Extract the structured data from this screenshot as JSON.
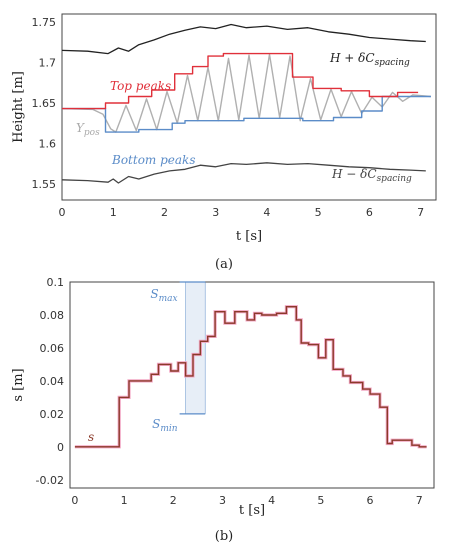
{
  "chart_data": [
    {
      "type": "line",
      "panel_label": "(a)",
      "xlabel": "t [s]",
      "ylabel": "Height [m]",
      "xlim": [
        0,
        7.3
      ],
      "ylim": [
        1.53,
        1.76
      ],
      "x_ticks": [
        "0",
        "1",
        "2",
        "3",
        "4",
        "5",
        "6",
        "7"
      ],
      "y_ticks": [
        "1.55",
        "1.6",
        "1.65",
        "1.7",
        "1.75"
      ],
      "grid": false,
      "annotations": [
        {
          "key": "upper",
          "text": "H + δC",
          "sub": "spacing",
          "color": "#222222"
        },
        {
          "key": "top",
          "text": "Top peaks",
          "sub": "",
          "color": "#e0303a"
        },
        {
          "key": "ypos",
          "text": "Y",
          "sub": "pos",
          "color": "#aaaaaa"
        },
        {
          "key": "bottom",
          "text": "Bottom peaks",
          "sub": "",
          "color": "#5b8cc8"
        },
        {
          "key": "lower",
          "text": "H − δC",
          "sub": "spacing",
          "color": "#444444"
        }
      ],
      "series": [
        {
          "key": "upper_bound",
          "color": "#222222",
          "x": [
            0,
            0.5,
            0.9,
            1.1,
            1.3,
            1.5,
            1.8,
            2.1,
            2.4,
            2.7,
            3.0,
            3.3,
            3.6,
            4.0,
            4.4,
            4.8,
            5.2,
            5.6,
            6.0,
            6.4,
            6.8,
            7.1
          ],
          "y": [
            1.715,
            1.714,
            1.711,
            1.718,
            1.714,
            1.722,
            1.728,
            1.735,
            1.74,
            1.744,
            1.742,
            1.747,
            1.743,
            1.745,
            1.741,
            1.743,
            1.738,
            1.735,
            1.731,
            1.729,
            1.727,
            1.726
          ]
        },
        {
          "key": "lower_bound",
          "color": "#444444",
          "x": [
            0,
            0.5,
            0.9,
            1.0,
            1.1,
            1.3,
            1.5,
            1.8,
            2.1,
            2.4,
            2.7,
            3.0,
            3.3,
            3.6,
            4.0,
            4.4,
            4.8,
            5.2,
            5.6,
            6.0,
            6.4,
            6.8,
            7.1
          ],
          "y": [
            1.555,
            1.554,
            1.552,
            1.556,
            1.551,
            1.559,
            1.556,
            1.562,
            1.566,
            1.568,
            1.573,
            1.571,
            1.575,
            1.574,
            1.576,
            1.574,
            1.575,
            1.573,
            1.571,
            1.57,
            1.568,
            1.567,
            1.566
          ]
        },
        {
          "key": "top_peaks",
          "color": "#e0303a",
          "x": [
            0,
            0.85,
            0.85,
            1.3,
            1.3,
            1.75,
            1.75,
            2.2,
            2.2,
            2.55,
            2.55,
            2.85,
            2.85,
            3.15,
            3.15,
            4.5,
            4.5,
            4.9,
            4.9,
            5.45,
            5.45,
            6.0,
            6.0,
            6.55,
            6.55,
            6.95
          ],
          "y": [
            1.643,
            1.643,
            1.65,
            1.65,
            1.658,
            1.658,
            1.666,
            1.666,
            1.686,
            1.686,
            1.695,
            1.695,
            1.708,
            1.708,
            1.711,
            1.711,
            1.682,
            1.682,
            1.668,
            1.668,
            1.665,
            1.665,
            1.658,
            1.658,
            1.663,
            1.663
          ]
        },
        {
          "key": "bottom_peaks",
          "color": "#5b8cc8",
          "x": [
            0,
            0.85,
            0.85,
            1.5,
            1.5,
            2.15,
            2.15,
            2.4,
            2.4,
            3.55,
            3.55,
            4.7,
            4.7,
            5.3,
            5.3,
            5.85,
            5.85,
            6.25,
            6.25,
            7.2
          ],
          "y": [
            1.643,
            1.643,
            1.614,
            1.614,
            1.617,
            1.617,
            1.625,
            1.625,
            1.628,
            1.628,
            1.631,
            1.631,
            1.628,
            1.628,
            1.632,
            1.632,
            1.64,
            1.64,
            1.658,
            1.658
          ]
        },
        {
          "key": "ypos",
          "color": "#b0b0b0",
          "x": [
            0,
            0.6,
            0.8,
            0.95,
            1.05,
            1.25,
            1.45,
            1.65,
            1.85,
            2.05,
            2.25,
            2.45,
            2.65,
            2.85,
            3.05,
            3.25,
            3.45,
            3.65,
            3.85,
            4.05,
            4.25,
            4.45,
            4.65,
            4.85,
            5.05,
            5.25,
            5.45,
            5.65,
            5.85,
            6.05,
            6.25,
            6.45,
            6.65,
            6.85,
            7.2
          ],
          "y": [
            1.643,
            1.642,
            1.636,
            1.618,
            1.614,
            1.647,
            1.616,
            1.655,
            1.617,
            1.664,
            1.625,
            1.684,
            1.628,
            1.694,
            1.628,
            1.705,
            1.629,
            1.709,
            1.631,
            1.71,
            1.632,
            1.708,
            1.628,
            1.68,
            1.629,
            1.667,
            1.633,
            1.664,
            1.637,
            1.657,
            1.645,
            1.663,
            1.652,
            1.66,
            1.658
          ]
        }
      ]
    },
    {
      "type": "line",
      "panel_label": "(b)",
      "xlabel": "t [s]",
      "ylabel": "s [m]",
      "xlim": [
        -0.1,
        7.3
      ],
      "ylim": [
        -0.025,
        0.1
      ],
      "x_ticks": [
        "0",
        "1",
        "2",
        "3",
        "4",
        "5",
        "6",
        "7"
      ],
      "y_ticks": [
        "-0.02",
        "0",
        "0.02",
        "0.04",
        "0.06",
        "0.08",
        "0.1"
      ],
      "grid": false,
      "band": {
        "x": [
          2.25,
          2.65
        ],
        "smax": 0.1,
        "smin": 0.02,
        "color": "#5b8cc8"
      },
      "annotations": [
        {
          "key": "smax",
          "text": "S",
          "sub": "max",
          "color": "#5b8cc8"
        },
        {
          "key": "smin",
          "text": "S",
          "sub": "min",
          "color": "#5b8cc8"
        },
        {
          "key": "s",
          "text": "s",
          "sub": "",
          "color": "#8b3a2a"
        }
      ],
      "series": [
        {
          "key": "s",
          "color": "#8b3a2a",
          "steps": [
            [
              0.0,
              0.0
            ],
            [
              0.9,
              0.03
            ],
            [
              1.1,
              0.04
            ],
            [
              1.55,
              0.044
            ],
            [
              1.7,
              0.05
            ],
            [
              1.95,
              0.046
            ],
            [
              2.1,
              0.051
            ],
            [
              2.25,
              0.043
            ],
            [
              2.4,
              0.056
            ],
            [
              2.55,
              0.064
            ],
            [
              2.7,
              0.067
            ],
            [
              2.85,
              0.082
            ],
            [
              3.05,
              0.075
            ],
            [
              3.25,
              0.082
            ],
            [
              3.5,
              0.077
            ],
            [
              3.65,
              0.081
            ],
            [
              3.8,
              0.08
            ],
            [
              4.1,
              0.081
            ],
            [
              4.3,
              0.085
            ],
            [
              4.5,
              0.077
            ],
            [
              4.6,
              0.063
            ],
            [
              4.75,
              0.062
            ],
            [
              4.95,
              0.054
            ],
            [
              5.1,
              0.065
            ],
            [
              5.25,
              0.047
            ],
            [
              5.45,
              0.043
            ],
            [
              5.6,
              0.039
            ],
            [
              5.85,
              0.035
            ],
            [
              6.0,
              0.032
            ],
            [
              6.2,
              0.024
            ],
            [
              6.35,
              0.002
            ],
            [
              6.45,
              0.004
            ],
            [
              6.85,
              0.001
            ],
            [
              7.0,
              0.0
            ]
          ],
          "x_end": 7.15
        }
      ]
    }
  ]
}
